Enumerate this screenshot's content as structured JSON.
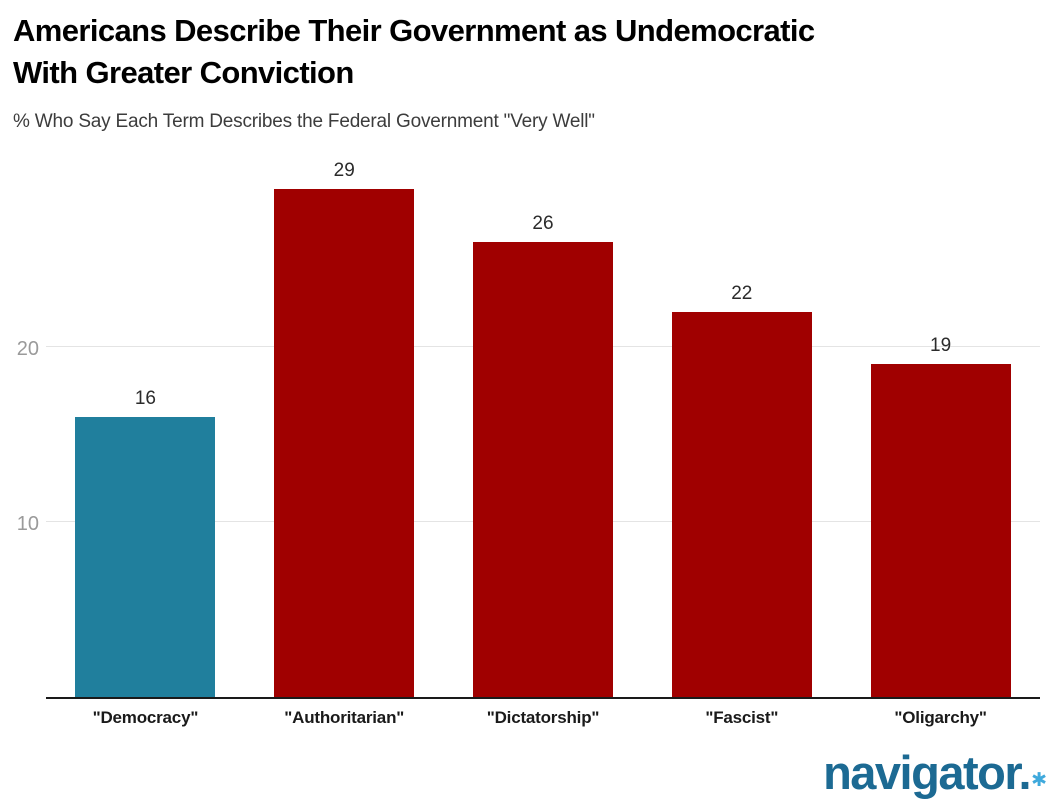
{
  "header": {
    "title": "Americans Describe Their Government as Undemocratic\nWith Greater Conviction",
    "subtitle": "% Who Say Each Term Describes the Federal Government \"Very Well\""
  },
  "chart_data": {
    "type": "bar",
    "title": "Americans Describe Their Government as Undemocratic With Greater Conviction",
    "subtitle": "% Who Say Each Term Describes the Federal Government \"Very Well\"",
    "categories": [
      "\"Democracy\"",
      "\"Authoritarian\"",
      "\"Dictatorship\"",
      "\"Fascist\"",
      "\"Oligarchy\""
    ],
    "values": [
      16,
      29,
      26,
      22,
      19
    ],
    "bar_colors": [
      "#207f9d",
      "#a00000",
      "#a00000",
      "#a00000",
      "#a00000"
    ],
    "data_labels": [
      "16",
      "29",
      "26",
      "22",
      "19"
    ],
    "xlabel": "",
    "ylabel": "",
    "ylim": [
      0,
      31.8
    ],
    "yticks": [
      10,
      20
    ],
    "grid": true,
    "legend": false
  },
  "colors": {
    "highlight_bar": "#207f9d",
    "default_bar": "#a00000",
    "gridline": "#e4e4e4",
    "axis_line": "#1a1a1a",
    "ytick_text": "#9a9a9a",
    "value_label_text": "#2b2b2b",
    "category_label_text": "#1a1a1a",
    "title_text": "#000000",
    "subtitle_text": "#3c3c3c",
    "logo_blue": "#1c6a93",
    "logo_asterisk_blue": "#3fa9dc"
  },
  "branding": {
    "logo_text": "navigator.",
    "logo_asterisk": "✱"
  }
}
